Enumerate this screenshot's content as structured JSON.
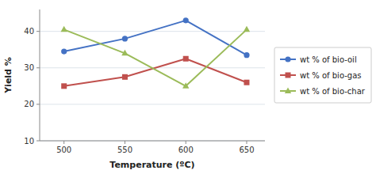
{
  "chart_data": {
    "type": "line",
    "x": [
      500,
      550,
      600,
      650
    ],
    "series": [
      {
        "name": "wt % of bio-oil",
        "color": "#4472C4",
        "marker": "circle",
        "values": [
          34.5,
          38,
          43,
          33.5
        ]
      },
      {
        "name": "wt % of bio-gas",
        "color": "#C0504D",
        "marker": "square",
        "values": [
          25,
          27.5,
          32.5,
          26
        ]
      },
      {
        "name": "wt % of bio-char",
        "color": "#9BBB59",
        "marker": "triangle",
        "values": [
          40.5,
          34,
          25,
          40.5
        ]
      }
    ],
    "xlabel": "Temperature (ºC)",
    "ylabel": "Yield %",
    "xlim": [
      480,
      665
    ],
    "ylim": [
      10,
      46
    ],
    "xticks": [
      500,
      550,
      600,
      650
    ],
    "yticks": [
      10,
      20,
      30,
      40
    ],
    "grid": true,
    "legend": "right"
  }
}
